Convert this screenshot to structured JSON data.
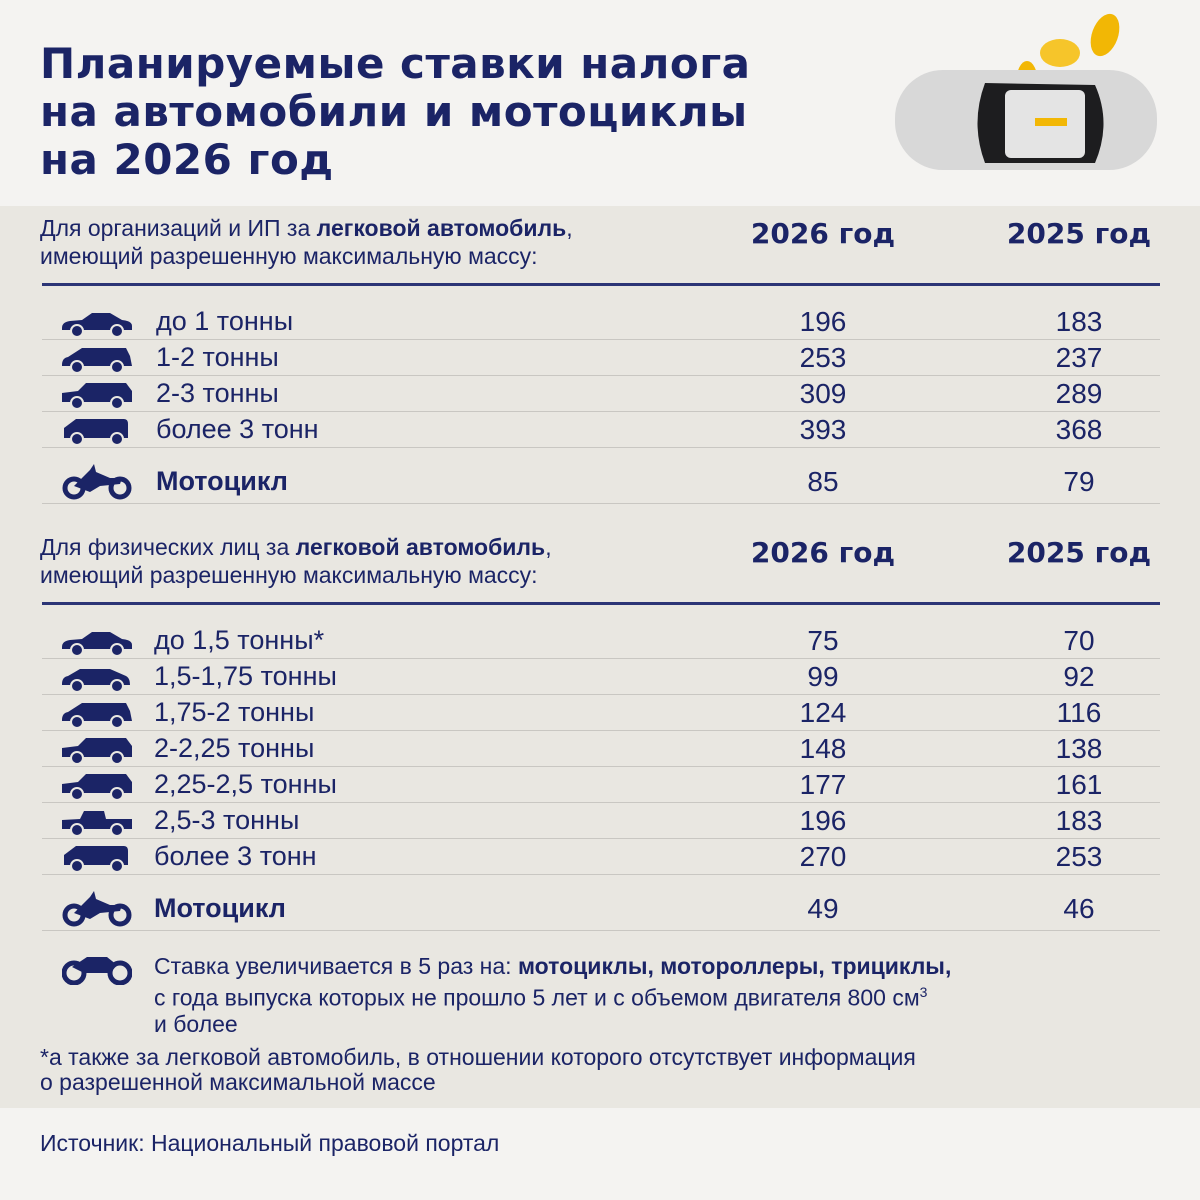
{
  "title": [
    "Планируемые ставки налога",
    "на автомобили и мотоциклы",
    "на 2026 год"
  ],
  "colors": {
    "text": "#1b2466",
    "background": "#e9e7e1",
    "rule": "#2c3576",
    "coin": "#f2b705"
  },
  "sections": [
    {
      "header_pre": "Для организаций и ИП за ",
      "header_bold": "легковой автомобиль",
      "header_post": ",",
      "header_line2": "имеющий разрешенную максимальную массу:",
      "col1": "2026 год",
      "col2": "2025 год",
      "rows": [
        {
          "icon": "sedan-icon",
          "label": "до 1 тонны",
          "v2026": "196",
          "v2025": "183"
        },
        {
          "icon": "wagon-icon",
          "label": "1-2 тонны",
          "v2026": "253",
          "v2025": "237"
        },
        {
          "icon": "suv-icon",
          "label": "2-3 тонны",
          "v2026": "309",
          "v2025": "289"
        },
        {
          "icon": "van-icon",
          "label": "более 3 тонн",
          "v2026": "393",
          "v2025": "368"
        }
      ],
      "moto": {
        "icon": "motorcycle-icon",
        "label": "Мотоцикл",
        "v2026": "85",
        "v2025": "79"
      }
    },
    {
      "header_pre": "Для физических лиц за ",
      "header_bold": "легковой автомобиль",
      "header_post": ",",
      "header_line2": "имеющий разрешенную максимальную массу:",
      "col1": "2026 год",
      "col2": "2025 год",
      "rows": [
        {
          "icon": "sedan-icon",
          "label": "до 1,5 тонны*",
          "v2026": "75",
          "v2025": "70"
        },
        {
          "icon": "hatchback-icon",
          "label": "1,5-1,75 тонны",
          "v2026": "99",
          "v2025": "92"
        },
        {
          "icon": "wagon-icon",
          "label": "1,75-2 тонны",
          "v2026": "124",
          "v2025": "116"
        },
        {
          "icon": "suv-icon",
          "label": "2-2,25 тонны",
          "v2026": "148",
          "v2025": "138"
        },
        {
          "icon": "suv-icon",
          "label": "2,25-2,5 тонны",
          "v2026": "177",
          "v2025": "161"
        },
        {
          "icon": "pickup-icon",
          "label": "2,5-3 тонны",
          "v2026": "196",
          "v2025": "183"
        },
        {
          "icon": "van-icon",
          "label": "более 3 тонн",
          "v2026": "270",
          "v2025": "253"
        }
      ],
      "moto": {
        "icon": "motorcycle-icon",
        "label": "Мотоцикл",
        "v2026": "49",
        "v2025": "46"
      }
    }
  ],
  "note": {
    "pre": "Ставка увеличивается в 5 раз на: ",
    "bold": "мотоциклы, мотороллеры, трициклы,",
    "line2": "с года выпуска которых не прошло 5 лет и с объемом двигателя 800 см",
    "sup": "3",
    "line3": "и более"
  },
  "footnote": [
    "*а также за легковой автомобиль, в отношении которого отсутствует информация",
    "о разрешенной максимальной массе"
  ],
  "source": "Источник: Национальный правовой портал"
}
